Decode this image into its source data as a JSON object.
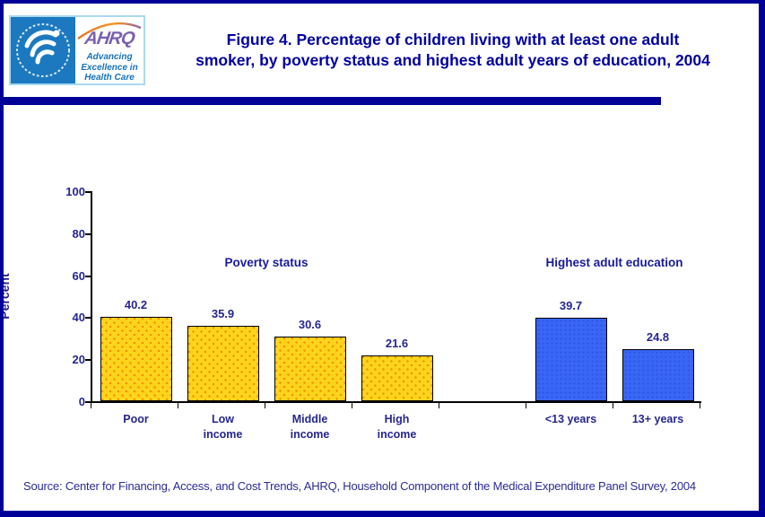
{
  "page": {
    "background": "#FFFFFF",
    "border_color": "#000099"
  },
  "header": {
    "title_lines": [
      "Figure 4. Percentage of children living with at least one adult",
      "smoker, by poverty status and highest adult years of education, 2004"
    ],
    "logo": {
      "hhs_seal": "hhs-eagle-seal",
      "ahrq_name": "AHRQ",
      "tagline_lines": [
        "Advancing",
        "Excellence in",
        "Health Care"
      ]
    }
  },
  "chart_data": {
    "type": "bar",
    "title": "",
    "xlabel": "",
    "ylabel": "Percent",
    "ylim": [
      0,
      100
    ],
    "yticks": [
      0,
      20,
      40,
      60,
      80,
      100
    ],
    "grid": false,
    "legend_position": "none",
    "groups": [
      {
        "label": "Poverty status",
        "bar_color": "#FFD41C",
        "texture": "dots",
        "bars": [
          {
            "category": "Poor",
            "category_lines": [
              "Poor"
            ],
            "value": 40.2
          },
          {
            "category": "Low income",
            "category_lines": [
              "Low",
              "income"
            ],
            "value": 35.9
          },
          {
            "category": "Middle income",
            "category_lines": [
              "Middle",
              "income"
            ],
            "value": 30.6
          },
          {
            "category": "High income",
            "category_lines": [
              "High",
              "income"
            ],
            "value": 21.6
          }
        ]
      },
      {
        "label": "Highest adult education",
        "bar_color": "#3A66F5",
        "texture": "fine",
        "bars": [
          {
            "category": "<13 years",
            "category_lines": [
              "<13 years"
            ],
            "value": 39.7
          },
          {
            "category": "13+ years",
            "category_lines": [
              "13+ years"
            ],
            "value": 24.8
          }
        ]
      }
    ]
  },
  "footer": {
    "source": "Source: Center for Financing, Access, and Cost Trends, AHRQ, Household Component of the Medical Expenditure Panel Survey, 2004"
  }
}
